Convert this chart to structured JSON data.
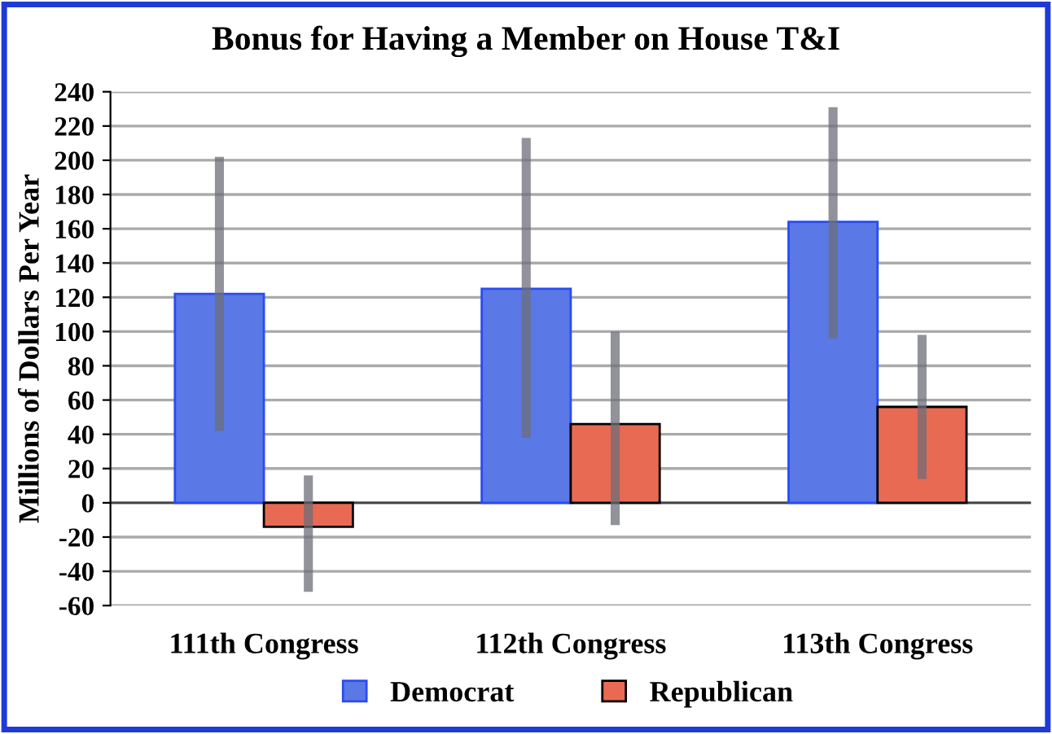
{
  "chart_data": {
    "type": "bar",
    "title": "Bonus for Having a Member on House T&I",
    "ylabel": "Millions of Dollars Per Year",
    "categories": [
      "111th Congress",
      "112th Congress",
      "113th Congress"
    ],
    "series": [
      {
        "name": "Democrat",
        "color": "#5a78e6",
        "values": [
          122,
          125,
          164
        ],
        "errors": [
          [
            42,
            202
          ],
          [
            38,
            213
          ],
          [
            96,
            231
          ]
        ]
      },
      {
        "name": "Republican",
        "color": "#e86a52",
        "values": [
          -14,
          46,
          56
        ],
        "errors": [
          [
            -52,
            16
          ],
          [
            -13,
            100
          ],
          [
            14,
            98
          ]
        ]
      }
    ],
    "ylim": [
      -60,
      240
    ],
    "yticks": [
      -60,
      -40,
      -20,
      0,
      20,
      40,
      60,
      80,
      100,
      120,
      140,
      160,
      180,
      200,
      220,
      240
    ],
    "grid": "y",
    "legend": "bottom"
  }
}
